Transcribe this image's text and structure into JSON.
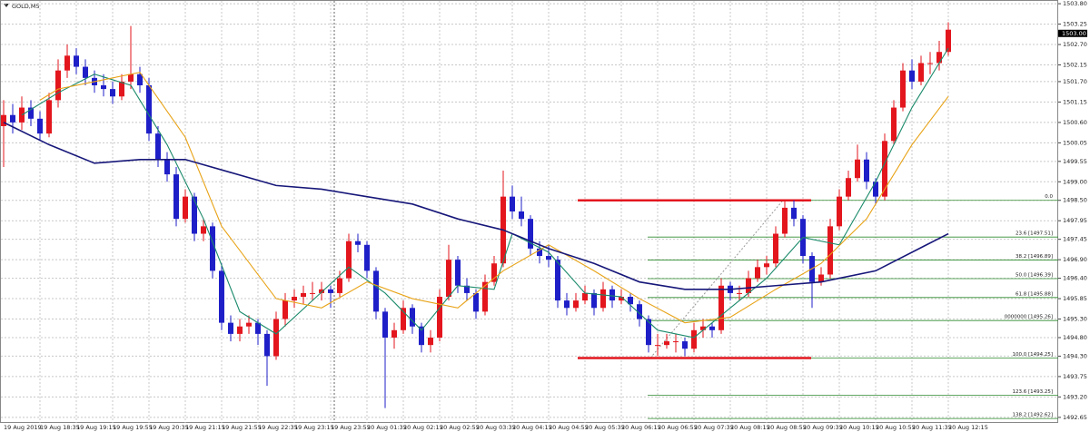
{
  "chart_data": {
    "type": "candlestick",
    "title": "GOLD,M5",
    "up_color": "#e3161e",
    "down_color": "#1f1fc8",
    "grid": true,
    "ylim": [
      1492.5,
      1503.9
    ],
    "yticks": [
      {
        "value": 1503.8,
        "label": "1503.80"
      },
      1503.25,
      {
        "value": 1502.7,
        "label": "1502.70"
      },
      1502.15,
      {
        "value": 1501.7,
        "label": "1501.70"
      },
      1501.15,
      {
        "value": 1500.6,
        "label": "1500.60"
      },
      1500.05,
      1499.55,
      {
        "value": 1499,
        "label": "1499.00"
      },
      {
        "value": 1498.5,
        "label": "1498.50"
      },
      1497.95,
      1497.45,
      {
        "value": 1496.9,
        "label": "1496.90"
      },
      {
        "value": 1496.4,
        "label": "1496.40"
      },
      1495.85,
      {
        "value": 1495.3,
        "label": "1495.30"
      },
      {
        "value": 1494.8,
        "label": "1494.80"
      },
      {
        "value": 1494.3,
        "label": "1494.30"
      },
      1493.75,
      {
        "value": 1493.2,
        "label": "1493.20"
      },
      1492.65
    ],
    "current_price": {
      "value": 1503,
      "label": "1503.00"
    },
    "categories": [
      "19 Aug 2019",
      null,
      null,
      null,
      "19 Aug 18:35",
      null,
      null,
      null,
      "19 Aug 19:15",
      null,
      null,
      null,
      "19 Aug 19:55",
      null,
      null,
      null,
      "19 Aug 20:35",
      null,
      null,
      null,
      "19 Aug 21:15",
      null,
      null,
      null,
      "19 Aug 21:55",
      null,
      null,
      null,
      "19 Aug 22:35",
      null,
      null,
      null,
      "19 Aug 23:15",
      null,
      null,
      null,
      "19 Aug 23:55",
      null,
      null,
      null,
      "20 Aug 01:35",
      null,
      null,
      null,
      "20 Aug 02:15",
      null,
      null,
      null,
      "20 Aug 02:55",
      null,
      null,
      null,
      "20 Aug 03:35",
      null,
      null,
      null,
      "20 Aug 04:15",
      null,
      null,
      null,
      "20 Aug 04:55",
      null,
      null,
      null,
      "20 Aug 05:35",
      null,
      null,
      null,
      "20 Aug 06:15",
      null,
      null,
      null,
      "20 Aug 06:55",
      null,
      null,
      null,
      "20 Aug 07:35",
      null,
      null,
      null,
      "20 Aug 08:15",
      null,
      null,
      null,
      "20 Aug 08:55",
      null,
      null,
      null,
      "20 Aug 09:35",
      null,
      null,
      null,
      "20 Aug 10:15",
      null,
      null,
      null,
      "20 Aug 10:55",
      null,
      null,
      null,
      "20 Aug 11:35",
      null,
      null,
      null,
      "20 Aug 12:15"
    ],
    "candles": [
      [
        1500.5,
        1501.2,
        1499.4,
        1500.8
      ],
      [
        1500.8,
        1501.1,
        1500.3,
        1500.6
      ],
      [
        1500.6,
        1501.3,
        1500.4,
        1501.0
      ],
      [
        1501.0,
        1501.2,
        1500.5,
        1500.7
      ],
      [
        1500.7,
        1500.9,
        1500.1,
        1500.3
      ],
      [
        1500.3,
        1501.4,
        1500.2,
        1501.2
      ],
      [
        1501.2,
        1502.3,
        1501.0,
        1502.0
      ],
      [
        1502.0,
        1502.7,
        1501.8,
        1502.4
      ],
      [
        1502.4,
        1502.6,
        1501.9,
        1502.1
      ],
      [
        1502.1,
        1502.3,
        1501.6,
        1501.8
      ],
      [
        1501.8,
        1502.0,
        1501.4,
        1501.6
      ],
      [
        1501.6,
        1501.9,
        1501.3,
        1501.5
      ],
      [
        1501.5,
        1501.7,
        1501.1,
        1501.3
      ],
      [
        1501.3,
        1501.9,
        1501.2,
        1501.7
      ],
      [
        1501.7,
        1503.2,
        1501.5,
        1501.9
      ],
      [
        1501.9,
        1502.1,
        1501.4,
        1501.6
      ],
      [
        1501.6,
        1501.8,
        1500.1,
        1500.3
      ],
      [
        1500.3,
        1500.5,
        1499.4,
        1499.6
      ],
      [
        1499.6,
        1499.8,
        1499.0,
        1499.2
      ],
      [
        1499.2,
        1499.4,
        1497.8,
        1498.0
      ],
      [
        1498.0,
        1498.8,
        1497.9,
        1498.6
      ],
      [
        1498.6,
        1498.7,
        1497.4,
        1497.6
      ],
      [
        1497.6,
        1498.0,
        1497.4,
        1497.8
      ],
      [
        1497.8,
        1497.9,
        1496.4,
        1496.6
      ],
      [
        1496.6,
        1496.8,
        1495.0,
        1495.2
      ],
      [
        1495.2,
        1495.4,
        1494.7,
        1494.9
      ],
      [
        1494.9,
        1495.3,
        1494.7,
        1495.1
      ],
      [
        1495.1,
        1495.4,
        1494.9,
        1495.2
      ],
      [
        1495.2,
        1495.3,
        1494.6,
        1494.9
      ],
      [
        1494.9,
        1495.0,
        1493.5,
        1494.3
      ],
      [
        1494.3,
        1495.5,
        1494.2,
        1495.3
      ],
      [
        1495.3,
        1496.0,
        1495.1,
        1495.8
      ],
      [
        1495.8,
        1496.1,
        1495.6,
        1495.9
      ],
      [
        1495.9,
        1496.2,
        1495.7,
        1496.0
      ],
      [
        1496.0,
        1496.3,
        1495.8,
        1496.0
      ],
      [
        1496.0,
        1496.3,
        1495.8,
        1496.1
      ],
      [
        1496.1,
        1496.2,
        1495.6,
        1496.0
      ],
      [
        1496.0,
        1496.6,
        1495.9,
        1496.4
      ],
      [
        1496.4,
        1497.6,
        1496.3,
        1497.4
      ],
      [
        1497.4,
        1497.6,
        1497.1,
        1497.3
      ],
      [
        1497.3,
        1497.4,
        1496.4,
        1496.6
      ],
      [
        1496.6,
        1496.7,
        1495.3,
        1495.5
      ],
      [
        1495.5,
        1495.6,
        1492.9,
        1494.8
      ],
      [
        1494.8,
        1495.2,
        1494.5,
        1495.0
      ],
      [
        1495.0,
        1495.8,
        1494.9,
        1495.6
      ],
      [
        1495.6,
        1495.7,
        1494.9,
        1495.1
      ],
      [
        1495.1,
        1495.2,
        1494.4,
        1494.6
      ],
      [
        1494.6,
        1495.0,
        1494.4,
        1494.8
      ],
      [
        1494.8,
        1496.1,
        1494.7,
        1495.9
      ],
      [
        1495.9,
        1497.3,
        1495.8,
        1496.9
      ],
      [
        1496.9,
        1497.0,
        1496.0,
        1496.2
      ],
      [
        1496.2,
        1496.4,
        1495.8,
        1496.0
      ],
      [
        1496.0,
        1496.1,
        1495.3,
        1495.5
      ],
      [
        1495.5,
        1496.5,
        1495.4,
        1496.3
      ],
      [
        1496.3,
        1497.0,
        1496.2,
        1496.8
      ],
      [
        1496.8,
        1499.3,
        1496.7,
        1498.6
      ],
      [
        1498.6,
        1498.9,
        1498.0,
        1498.2
      ],
      [
        1498.2,
        1498.6,
        1497.8,
        1498.0
      ],
      [
        1498.0,
        1498.1,
        1497.0,
        1497.2
      ],
      [
        1497.2,
        1497.4,
        1496.8,
        1497.0
      ],
      [
        1497.0,
        1497.3,
        1496.7,
        1496.9
      ],
      [
        1496.9,
        1497.0,
        1495.6,
        1495.8
      ],
      [
        1495.8,
        1496.0,
        1495.4,
        1495.6
      ],
      [
        1495.6,
        1496.0,
        1495.5,
        1495.8
      ],
      [
        1495.8,
        1496.2,
        1495.7,
        1496.0
      ],
      [
        1496.0,
        1496.1,
        1495.4,
        1495.6
      ],
      [
        1495.6,
        1496.3,
        1495.5,
        1496.1
      ],
      [
        1496.1,
        1496.2,
        1495.6,
        1495.8
      ],
      [
        1495.8,
        1496.1,
        1495.7,
        1495.9
      ],
      [
        1495.9,
        1496.0,
        1495.5,
        1495.7
      ],
      [
        1495.7,
        1495.8,
        1495.1,
        1495.3
      ],
      [
        1495.3,
        1495.4,
        1494.4,
        1494.6
      ],
      [
        1494.6,
        1494.9,
        1494.3,
        1494.6
      ],
      [
        1494.6,
        1494.9,
        1494.5,
        1494.7
      ],
      [
        1494.7,
        1494.9,
        1494.4,
        1494.7
      ],
      [
        1494.7,
        1494.8,
        1494.3,
        1494.5
      ],
      [
        1494.5,
        1495.2,
        1494.4,
        1495.0
      ],
      [
        1495.0,
        1495.3,
        1494.8,
        1495.1
      ],
      [
        1495.1,
        1495.2,
        1494.8,
        1495.0
      ],
      [
        1495.0,
        1496.4,
        1494.9,
        1496.2
      ],
      [
        1496.2,
        1496.3,
        1495.8,
        1496.0
      ],
      [
        1496.0,
        1496.2,
        1495.8,
        1496.0
      ],
      [
        1496.0,
        1496.6,
        1495.9,
        1496.4
      ],
      [
        1496.4,
        1496.9,
        1496.3,
        1496.7
      ],
      [
        1496.7,
        1497.0,
        1496.5,
        1496.8
      ],
      [
        1496.8,
        1497.8,
        1496.7,
        1497.6
      ],
      [
        1497.6,
        1498.5,
        1497.5,
        1498.3
      ],
      [
        1498.3,
        1498.5,
        1497.8,
        1498.0
      ],
      [
        1498.0,
        1498.1,
        1496.8,
        1497.0
      ],
      [
        1497.0,
        1497.1,
        1495.6,
        1496.3
      ],
      [
        1496.3,
        1496.7,
        1496.2,
        1496.5
      ],
      [
        1496.5,
        1498.0,
        1496.4,
        1497.8
      ],
      [
        1497.8,
        1498.8,
        1497.7,
        1498.6
      ],
      [
        1498.6,
        1499.3,
        1498.5,
        1499.1
      ],
      [
        1499.1,
        1500.0,
        1499.0,
        1499.6
      ],
      [
        1499.6,
        1499.8,
        1498.8,
        1499.0
      ],
      [
        1499.0,
        1499.1,
        1498.4,
        1498.6
      ],
      [
        1498.6,
        1500.3,
        1498.5,
        1500.1
      ],
      [
        1500.1,
        1501.2,
        1500.0,
        1501.0
      ],
      [
        1501.0,
        1502.2,
        1500.9,
        1502.0
      ],
      [
        1502.0,
        1502.3,
        1501.5,
        1501.7
      ],
      [
        1501.7,
        1502.4,
        1501.6,
        1502.2
      ],
      [
        1502.2,
        1502.5,
        1501.9,
        1502.2
      ],
      [
        1502.2,
        1502.8,
        1502.0,
        1502.5
      ],
      [
        1502.5,
        1503.3,
        1502.4,
        1503.1
      ]
    ],
    "lines": [
      {
        "color": "#1b8a6b",
        "x": [
          2,
          6,
          10,
          14,
          18,
          22,
          26,
          30,
          34,
          38,
          42,
          46,
          50,
          54,
          56,
          60,
          64,
          68,
          72,
          76,
          80,
          84,
          88,
          92,
          96,
          100,
          104
        ],
        "values": [
          1500.8,
          1501.4,
          1501.9,
          1501.6,
          1500.0,
          1498.0,
          1495.5,
          1494.9,
          1495.8,
          1496.7,
          1496.0,
          1495.0,
          1496.2,
          1496.1,
          1497.6,
          1497.1,
          1496.0,
          1495.9,
          1495.0,
          1494.8,
          1495.6,
          1496.4,
          1497.5,
          1497.3,
          1499.0,
          1501.0,
          1502.6
        ]
      },
      {
        "color": "#e8a317",
        "x": [
          4,
          6,
          10,
          15,
          20,
          24,
          30,
          35,
          40,
          45,
          50,
          55,
          60,
          65,
          70,
          75,
          80,
          85,
          90,
          95,
          100,
          104
        ],
        "values": [
          1501.2,
          1501.5,
          1501.7,
          1501.95,
          1500.2,
          1497.8,
          1495.85,
          1495.6,
          1496.3,
          1495.85,
          1495.6,
          1496.6,
          1497.3,
          1496.6,
          1495.85,
          1495.2,
          1495.35,
          1496.1,
          1496.8,
          1498.0,
          1500.0,
          1501.3
        ]
      },
      {
        "color": "#17177a",
        "x": [
          0,
          5,
          10,
          15,
          20,
          25,
          30,
          35,
          40,
          45,
          50,
          55,
          60,
          65,
          70,
          75,
          80,
          85,
          90,
          96,
          104
        ],
        "values": [
          1500.6,
          1500.0,
          1499.5,
          1499.6,
          1499.6,
          1499.25,
          1498.9,
          1498.8,
          1498.6,
          1498.4,
          1498.0,
          1497.7,
          1497.2,
          1496.8,
          1496.3,
          1496.1,
          1496.1,
          1496.2,
          1496.3,
          1496.6,
          1497.6
        ]
      }
    ],
    "fibonacci": {
      "color": "#2e8b2e",
      "high": 1498.5,
      "low": 1494.25,
      "levels": [
        {
          "label": "0.0",
          "price": 1498.5
        },
        {
          "label": "23.6 [1497.51]",
          "price": 1497.51
        },
        {
          "label": "38.2 [1496.89]",
          "price": 1496.89
        },
        {
          "label": "50.0 [1496.39]",
          "price": 1496.39
        },
        {
          "label": "61.8 [1495.88]",
          "price": 1495.88
        },
        {
          "label": "0000000 [1495.26]",
          "price": 1495.26
        },
        {
          "label": "100.0 [1494.25]",
          "price": 1494.25
        },
        {
          "label": "123.6 [1493.25]",
          "price": 1493.25
        },
        {
          "label": "138.2 [1492.62]",
          "price": 1492.62
        }
      ]
    },
    "range_lines": {
      "color": "#e3161e",
      "prices": [
        1498.5,
        1494.25
      ]
    }
  }
}
